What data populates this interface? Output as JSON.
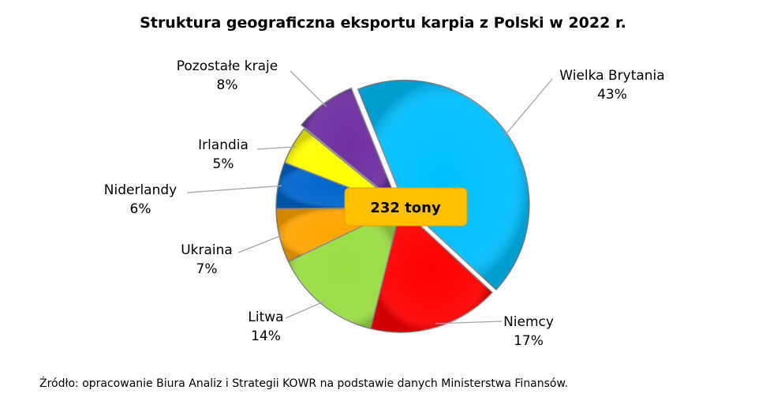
{
  "chart_data": {
    "type": "pie",
    "title": "Struktura geograficzna eksportu karpia z Polski w 2022 r.",
    "center_label": "232 tony",
    "unit": "%",
    "slices": [
      {
        "name": "Wielka Brytania",
        "value": 43,
        "label": "43%",
        "color": "#00BFFF"
      },
      {
        "name": "Niemcy",
        "value": 17,
        "label": "17%",
        "color": "#FF0000"
      },
      {
        "name": "Litwa",
        "value": 14,
        "label": "14%",
        "color": "#99DD44"
      },
      {
        "name": "Ukraina",
        "value": 7,
        "label": "7%",
        "color": "#FFA500"
      },
      {
        "name": "Niderlandy",
        "value": 6,
        "label": "6%",
        "color": "#0066CC"
      },
      {
        "name": "Irlandia",
        "value": 5,
        "label": "5%",
        "color": "#FFFF00"
      },
      {
        "name": "Pozostałe kraje",
        "value": 8,
        "label": "8%",
        "color": "#7030A0"
      }
    ]
  },
  "source": "Źródło: opracowanie Biura Analiz i Strategii KOWR na podstawie danych Ministerstwa Finansów."
}
